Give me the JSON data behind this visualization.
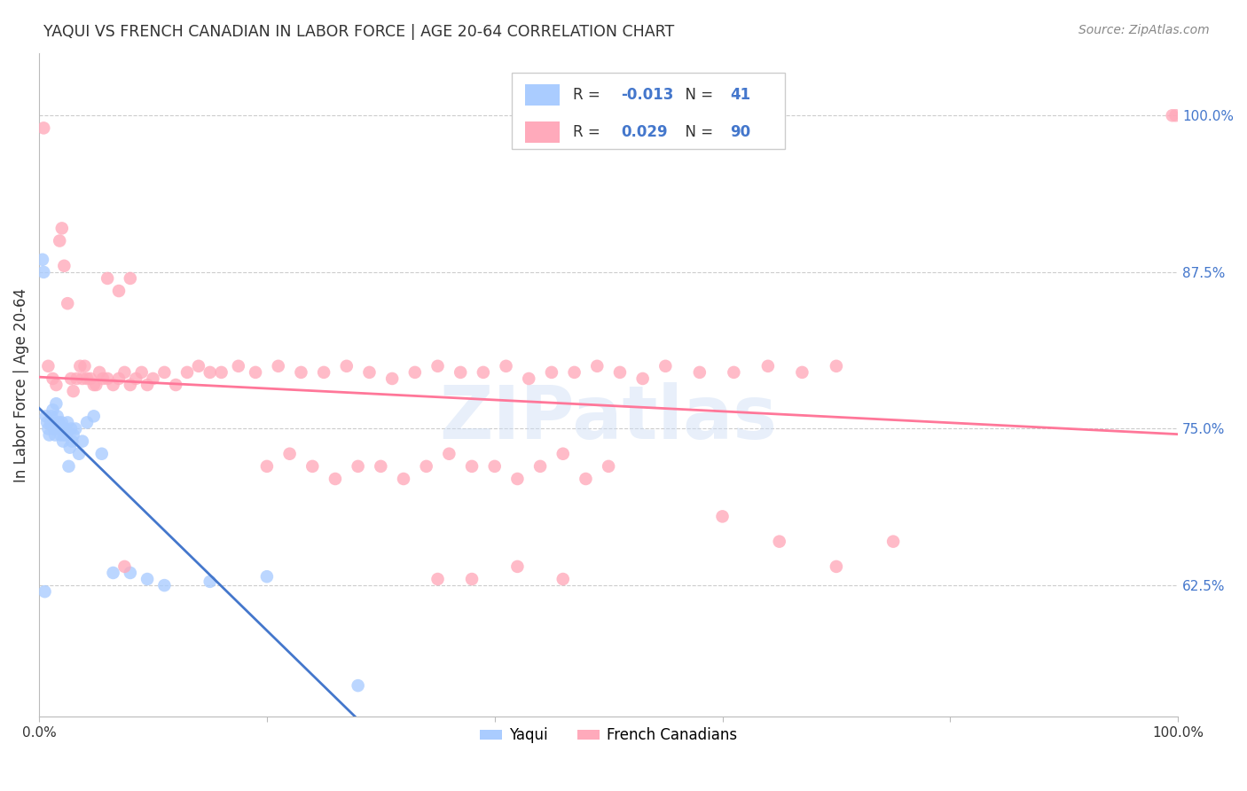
{
  "title": "YAQUI VS FRENCH CANADIAN IN LABOR FORCE | AGE 20-64 CORRELATION CHART",
  "source": "Source: ZipAtlas.com",
  "ylabel": "In Labor Force | Age 20-64",
  "ytick_labels": [
    "62.5%",
    "75.0%",
    "87.5%",
    "100.0%"
  ],
  "ytick_values": [
    0.625,
    0.75,
    0.875,
    1.0
  ],
  "xlim": [
    0.0,
    1.0
  ],
  "ylim": [
    0.52,
    1.05
  ],
  "yaqui_R": -0.013,
  "yaqui_N": 41,
  "french_R": 0.029,
  "french_N": 90,
  "yaqui_color": "#aaccff",
  "french_color": "#ffaabb",
  "yaqui_line_color": "#4477cc",
  "french_line_color": "#ff7799",
  "watermark": "ZIPatlas",
  "yaqui_x": [
    0.003,
    0.004,
    0.005,
    0.006,
    0.007,
    0.008,
    0.009,
    0.01,
    0.011,
    0.012,
    0.013,
    0.014,
    0.015,
    0.016,
    0.017,
    0.018,
    0.019,
    0.02,
    0.021,
    0.022,
    0.023,
    0.024,
    0.025,
    0.026,
    0.027,
    0.028,
    0.029,
    0.03,
    0.032,
    0.035,
    0.038,
    0.042,
    0.048,
    0.055,
    0.065,
    0.08,
    0.095,
    0.11,
    0.15,
    0.2,
    0.28
  ],
  "yaqui_y": [
    0.885,
    0.875,
    0.62,
    0.76,
    0.755,
    0.75,
    0.745,
    0.755,
    0.76,
    0.765,
    0.75,
    0.745,
    0.77,
    0.76,
    0.755,
    0.75,
    0.745,
    0.755,
    0.74,
    0.745,
    0.75,
    0.745,
    0.755,
    0.72,
    0.735,
    0.75,
    0.74,
    0.745,
    0.75,
    0.73,
    0.74,
    0.755,
    0.76,
    0.73,
    0.635,
    0.635,
    0.63,
    0.625,
    0.628,
    0.632,
    0.545
  ],
  "french_x": [
    0.004,
    0.008,
    0.012,
    0.015,
    0.018,
    0.02,
    0.022,
    0.025,
    0.028,
    0.03,
    0.033,
    0.036,
    0.038,
    0.04,
    0.042,
    0.045,
    0.048,
    0.05,
    0.053,
    0.056,
    0.06,
    0.065,
    0.07,
    0.075,
    0.08,
    0.085,
    0.09,
    0.095,
    0.1,
    0.11,
    0.12,
    0.13,
    0.14,
    0.15,
    0.16,
    0.175,
    0.19,
    0.21,
    0.23,
    0.25,
    0.27,
    0.29,
    0.31,
    0.33,
    0.35,
    0.37,
    0.39,
    0.41,
    0.43,
    0.45,
    0.47,
    0.49,
    0.51,
    0.53,
    0.55,
    0.58,
    0.61,
    0.64,
    0.67,
    0.7,
    0.2,
    0.22,
    0.24,
    0.26,
    0.28,
    0.3,
    0.32,
    0.34,
    0.36,
    0.38,
    0.4,
    0.42,
    0.44,
    0.46,
    0.48,
    0.5,
    0.06,
    0.07,
    0.08,
    0.075,
    0.35,
    0.38,
    0.42,
    0.46,
    0.6,
    0.65,
    0.7,
    0.75,
    0.995,
    0.998
  ],
  "french_y": [
    0.99,
    0.8,
    0.79,
    0.785,
    0.9,
    0.91,
    0.88,
    0.85,
    0.79,
    0.78,
    0.79,
    0.8,
    0.79,
    0.8,
    0.79,
    0.79,
    0.785,
    0.785,
    0.795,
    0.79,
    0.79,
    0.785,
    0.79,
    0.795,
    0.785,
    0.79,
    0.795,
    0.785,
    0.79,
    0.795,
    0.785,
    0.795,
    0.8,
    0.795,
    0.795,
    0.8,
    0.795,
    0.8,
    0.795,
    0.795,
    0.8,
    0.795,
    0.79,
    0.795,
    0.8,
    0.795,
    0.795,
    0.8,
    0.79,
    0.795,
    0.795,
    0.8,
    0.795,
    0.79,
    0.8,
    0.795,
    0.795,
    0.8,
    0.795,
    0.8,
    0.72,
    0.73,
    0.72,
    0.71,
    0.72,
    0.72,
    0.71,
    0.72,
    0.73,
    0.72,
    0.72,
    0.71,
    0.72,
    0.73,
    0.71,
    0.72,
    0.87,
    0.86,
    0.87,
    0.64,
    0.63,
    0.63,
    0.64,
    0.63,
    0.68,
    0.66,
    0.64,
    0.66,
    1.0,
    1.0
  ]
}
